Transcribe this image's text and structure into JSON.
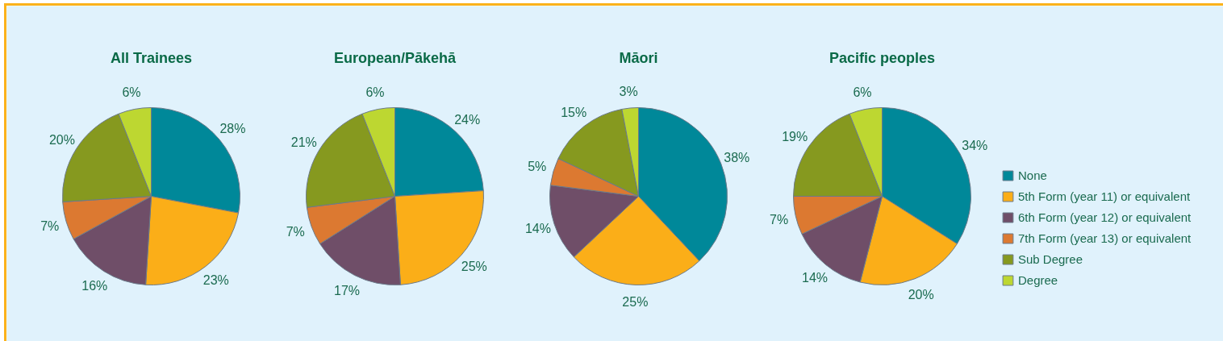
{
  "chart_data": {
    "type": "pie",
    "categories": [
      "None",
      "5th Form (year 11) or equivalent",
      "6th Form (year 12) or equivalent",
      "7th Form (year 13) or equivalent",
      "Sub Degree",
      "Degree"
    ],
    "colors": [
      "#008899",
      "#fbae18",
      "#6f4e68",
      "#dc7931",
      "#86991f",
      "#bdd731"
    ],
    "legend": "right",
    "series": [
      {
        "name": "All Trainees",
        "values": [
          28,
          23,
          16,
          7,
          20,
          6
        ],
        "value_labels": [
          "28%",
          "23%",
          "16%",
          "7%",
          "20%",
          "6%"
        ]
      },
      {
        "name": "European/Pākehā",
        "values": [
          24,
          25,
          17,
          7,
          21,
          6
        ],
        "value_labels": [
          "24%",
          "25%",
          "17%",
          "7%",
          "21%",
          "6%"
        ]
      },
      {
        "name": "Māori",
        "values": [
          38,
          25,
          14,
          5,
          15,
          3
        ],
        "value_labels": [
          "38%",
          "25%",
          "14%",
          "5%",
          "15%",
          "3%"
        ]
      },
      {
        "name": "Pacific peoples",
        "values": [
          34,
          20,
          14,
          7,
          19,
          6
        ],
        "value_labels": [
          "34%",
          "20%",
          "14%",
          "7%",
          "19%",
          "6%"
        ]
      }
    ]
  }
}
